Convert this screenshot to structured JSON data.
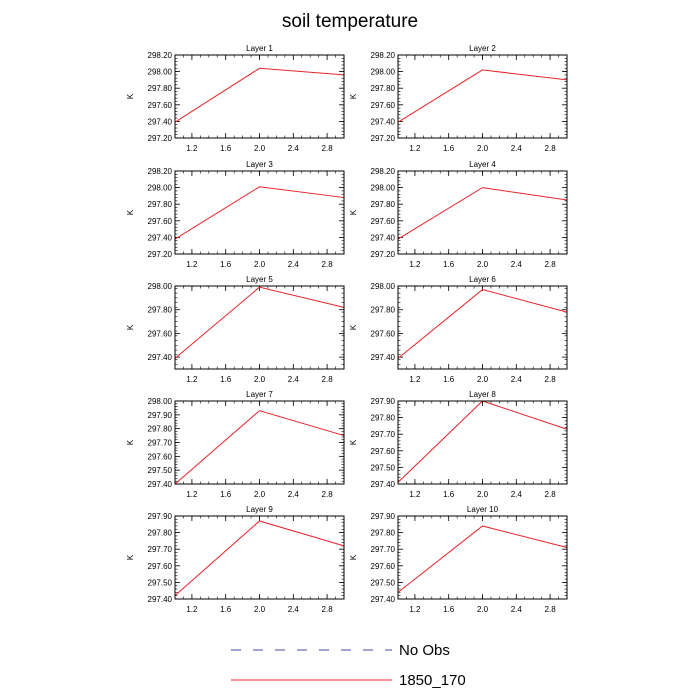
{
  "title": "soil temperature",
  "legend": [
    {
      "label": "No Obs",
      "color": "#4a4aa8",
      "dash": true
    },
    {
      "label": "1850_170",
      "color": "#e8242a",
      "dash": false
    }
  ],
  "chart_data": [
    {
      "type": "line",
      "title": "Layer 1",
      "ylabel": "K",
      "xlim": [
        1.0,
        3.0
      ],
      "ylim": [
        297.2,
        298.2
      ],
      "xticks": [
        1.2,
        1.6,
        2.0,
        2.4,
        2.8
      ],
      "xtick_labels": [
        "1.2",
        "1.6",
        "2.0",
        "2.4",
        "2.8"
      ],
      "yticks": [
        297.2,
        297.4,
        297.6,
        297.8,
        298.0,
        298.2
      ],
      "ytick_labels": [
        "297.20",
        "297.40",
        "297.60",
        "297.80",
        "298.00",
        "298.20"
      ],
      "series": [
        {
          "name": "1850_170",
          "color": "#e8242a",
          "x": [
            1.0,
            2.0,
            3.0
          ],
          "y": [
            297.39,
            298.04,
            297.96
          ]
        }
      ]
    },
    {
      "type": "line",
      "title": "Layer 2",
      "ylabel": "K",
      "xlim": [
        1.0,
        3.0
      ],
      "ylim": [
        297.2,
        298.2
      ],
      "xticks": [
        1.2,
        1.6,
        2.0,
        2.4,
        2.8
      ],
      "xtick_labels": [
        "1.2",
        "1.6",
        "2.0",
        "2.4",
        "2.8"
      ],
      "yticks": [
        297.2,
        297.4,
        297.6,
        297.8,
        298.0,
        298.2
      ],
      "ytick_labels": [
        "297.20",
        "297.40",
        "297.60",
        "297.80",
        "298.00",
        "298.20"
      ],
      "series": [
        {
          "name": "1850_170",
          "color": "#e8242a",
          "x": [
            1.0,
            2.0,
            3.0
          ],
          "y": [
            297.39,
            298.02,
            297.9
          ]
        }
      ]
    },
    {
      "type": "line",
      "title": "Layer 3",
      "ylabel": "K",
      "xlim": [
        1.0,
        3.0
      ],
      "ylim": [
        297.2,
        298.2
      ],
      "xticks": [
        1.2,
        1.6,
        2.0,
        2.4,
        2.8
      ],
      "xtick_labels": [
        "1.2",
        "1.6",
        "2.0",
        "2.4",
        "2.8"
      ],
      "yticks": [
        297.2,
        297.4,
        297.6,
        297.8,
        298.0,
        298.2
      ],
      "ytick_labels": [
        "297.20",
        "297.40",
        "297.60",
        "297.80",
        "298.00",
        "298.20"
      ],
      "series": [
        {
          "name": "1850_170",
          "color": "#e8242a",
          "x": [
            1.0,
            2.0,
            3.0
          ],
          "y": [
            297.38,
            298.01,
            297.88
          ]
        }
      ]
    },
    {
      "type": "line",
      "title": "Layer 4",
      "ylabel": "K",
      "xlim": [
        1.0,
        3.0
      ],
      "ylim": [
        297.2,
        298.2
      ],
      "xticks": [
        1.2,
        1.6,
        2.0,
        2.4,
        2.8
      ],
      "xtick_labels": [
        "1.2",
        "1.6",
        "2.0",
        "2.4",
        "2.8"
      ],
      "yticks": [
        297.2,
        297.4,
        297.6,
        297.8,
        298.0,
        298.2
      ],
      "ytick_labels": [
        "297.20",
        "297.40",
        "297.60",
        "297.80",
        "298.00",
        "298.20"
      ],
      "series": [
        {
          "name": "1850_170",
          "color": "#e8242a",
          "x": [
            1.0,
            2.0,
            3.0
          ],
          "y": [
            297.38,
            298.0,
            297.85
          ]
        }
      ]
    },
    {
      "type": "line",
      "title": "Layer 5",
      "ylabel": "K",
      "xlim": [
        1.0,
        3.0
      ],
      "ylim": [
        297.3,
        298.0
      ],
      "xticks": [
        1.2,
        1.6,
        2.0,
        2.4,
        2.8
      ],
      "xtick_labels": [
        "1.2",
        "1.6",
        "2.0",
        "2.4",
        "2.8"
      ],
      "yticks": [
        297.4,
        297.6,
        297.8,
        298.0
      ],
      "ytick_labels": [
        "297.40",
        "297.60",
        "297.80",
        "298.00"
      ],
      "series": [
        {
          "name": "1850_170",
          "color": "#e8242a",
          "x": [
            1.0,
            2.0,
            3.0
          ],
          "y": [
            297.39,
            297.99,
            297.82
          ]
        }
      ]
    },
    {
      "type": "line",
      "title": "Layer 6",
      "ylabel": "K",
      "xlim": [
        1.0,
        3.0
      ],
      "ylim": [
        297.3,
        298.0
      ],
      "xticks": [
        1.2,
        1.6,
        2.0,
        2.4,
        2.8
      ],
      "xtick_labels": [
        "1.2",
        "1.6",
        "2.0",
        "2.4",
        "2.8"
      ],
      "yticks": [
        297.4,
        297.6,
        297.8,
        298.0
      ],
      "ytick_labels": [
        "297.40",
        "297.60",
        "297.80",
        "298.00"
      ],
      "series": [
        {
          "name": "1850_170",
          "color": "#e8242a",
          "x": [
            1.0,
            2.0,
            3.0
          ],
          "y": [
            297.39,
            297.97,
            297.78
          ]
        }
      ]
    },
    {
      "type": "line",
      "title": "Layer 7",
      "ylabel": "K",
      "xlim": [
        1.0,
        3.0
      ],
      "ylim": [
        297.4,
        298.0
      ],
      "xticks": [
        1.2,
        1.6,
        2.0,
        2.4,
        2.8
      ],
      "xtick_labels": [
        "1.2",
        "1.6",
        "2.0",
        "2.4",
        "2.8"
      ],
      "yticks": [
        297.4,
        297.5,
        297.6,
        297.7,
        297.8,
        297.9,
        298.0
      ],
      "ytick_labels": [
        "297.40",
        "297.50",
        "297.60",
        "297.70",
        "297.80",
        "297.90",
        "298.00"
      ],
      "series": [
        {
          "name": "1850_170",
          "color": "#e8242a",
          "x": [
            1.0,
            2.0,
            3.0
          ],
          "y": [
            297.4,
            297.93,
            297.75
          ]
        }
      ]
    },
    {
      "type": "line",
      "title": "Layer 8",
      "ylabel": "K",
      "xlim": [
        1.0,
        3.0
      ],
      "ylim": [
        297.4,
        297.9
      ],
      "xticks": [
        1.2,
        1.6,
        2.0,
        2.4,
        2.8
      ],
      "xtick_labels": [
        "1.2",
        "1.6",
        "2.0",
        "2.4",
        "2.8"
      ],
      "yticks": [
        297.4,
        297.5,
        297.6,
        297.7,
        297.8,
        297.9
      ],
      "ytick_labels": [
        "297.40",
        "297.50",
        "297.60",
        "297.70",
        "297.80",
        "297.90"
      ],
      "series": [
        {
          "name": "1850_170",
          "color": "#e8242a",
          "x": [
            1.0,
            2.0,
            3.0
          ],
          "y": [
            297.41,
            297.9,
            297.73
          ]
        }
      ]
    },
    {
      "type": "line",
      "title": "Layer 9",
      "ylabel": "K",
      "xlim": [
        1.0,
        3.0
      ],
      "ylim": [
        297.4,
        297.9
      ],
      "xticks": [
        1.2,
        1.6,
        2.0,
        2.4,
        2.8
      ],
      "xtick_labels": [
        "1.2",
        "1.6",
        "2.0",
        "2.4",
        "2.8"
      ],
      "yticks": [
        297.4,
        297.5,
        297.6,
        297.7,
        297.8,
        297.9
      ],
      "ytick_labels": [
        "297.40",
        "297.50",
        "297.60",
        "297.70",
        "297.80",
        "297.90"
      ],
      "series": [
        {
          "name": "1850_170",
          "color": "#e8242a",
          "x": [
            1.0,
            2.0,
            3.0
          ],
          "y": [
            297.42,
            297.87,
            297.72
          ]
        }
      ]
    },
    {
      "type": "line",
      "title": "Layer 10",
      "ylabel": "K",
      "xlim": [
        1.0,
        3.0
      ],
      "ylim": [
        297.4,
        297.9
      ],
      "xticks": [
        1.2,
        1.6,
        2.0,
        2.4,
        2.8
      ],
      "xtick_labels": [
        "1.2",
        "1.6",
        "2.0",
        "2.4",
        "2.8"
      ],
      "yticks": [
        297.4,
        297.5,
        297.6,
        297.7,
        297.8,
        297.9
      ],
      "ytick_labels": [
        "297.40",
        "297.50",
        "297.60",
        "297.70",
        "297.80",
        "297.90"
      ],
      "series": [
        {
          "name": "1850_170",
          "color": "#e8242a",
          "x": [
            1.0,
            2.0,
            3.0
          ],
          "y": [
            297.44,
            297.84,
            297.71
          ]
        }
      ]
    }
  ]
}
